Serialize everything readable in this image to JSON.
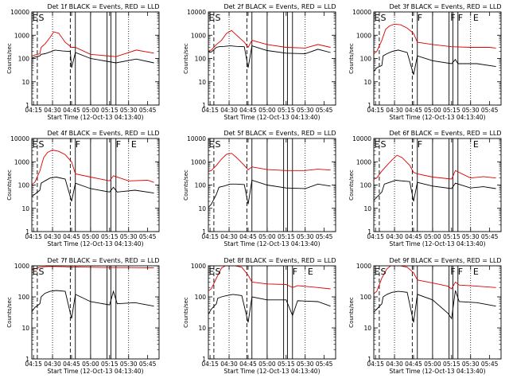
{
  "figure": {
    "common": {
      "ylabel": "Counts/sec",
      "xlabel": "Start Time (12-Oct-13 04:13:40)",
      "x_tick_labels": [
        "04:15",
        "04:30",
        "04:45",
        "05:00",
        "05:15",
        "05:30",
        "05:45"
      ],
      "y_tick_labels_a": [
        "1",
        "10",
        "100",
        "1000",
        "10000"
      ],
      "y_tick_labels_b": [
        "1",
        "10",
        "100",
        "1000"
      ],
      "colors": {
        "events": "#000000",
        "lld": "#dd0000",
        "axes": "#000000"
      }
    }
  },
  "chart_data": [
    {
      "type": "line",
      "title": "Det 1f BLACK = Events, RED = LLD",
      "xlabel": "Start Time (12-Oct-13 04:13:40)",
      "ylabel": "Counts/sec",
      "yscale": "log",
      "ylim": [
        1,
        10000
      ],
      "xlim": [
        "04:13:40",
        "05:54"
      ],
      "labels": [
        {
          "text": "E",
          "x": "04:14"
        },
        {
          "text": "S",
          "x": "04:19"
        }
      ],
      "series": [
        {
          "name": "Events",
          "color": "#000000",
          "x": [
            "04:13",
            "04:16",
            "04:20",
            "04:21",
            "04:24",
            "04:28",
            "04:32",
            "04:38",
            "04:44",
            "04:45",
            "04:48",
            "05:00",
            "05:20",
            "05:36",
            "05:50"
          ],
          "y": [
            100,
            115,
            130,
            150,
            160,
            190,
            230,
            210,
            200,
            40,
            180,
            100,
            65,
            95,
            65
          ]
        },
        {
          "name": "LLD",
          "color": "#dd0000",
          "x": [
            "04:13",
            "04:16",
            "04:20",
            "04:21",
            "04:24",
            "04:28",
            "04:31",
            "04:35",
            "04:40",
            "04:45",
            "04:48",
            "05:00",
            "05:20",
            "05:36",
            "05:50"
          ],
          "y": [
            120,
            140,
            160,
            300,
            420,
            800,
            1400,
            1200,
            500,
            300,
            300,
            150,
            120,
            230,
            170
          ]
        }
      ]
    },
    {
      "type": "line",
      "title": "Det 2f BLACK = Events, RED = LLD",
      "xlabel": "Start Time (12-Oct-13 04:13:40)",
      "ylabel": "Counts/sec",
      "yscale": "log",
      "ylim": [
        1,
        10000
      ],
      "xlim": [
        "04:13:40",
        "05:54"
      ],
      "labels": [
        {
          "text": "E",
          "x": "04:14"
        },
        {
          "text": "S",
          "x": "04:19"
        }
      ],
      "series": [
        {
          "name": "Events",
          "color": "#000000",
          "x": [
            "04:13",
            "04:16",
            "04:20",
            "04:22",
            "04:26",
            "04:31",
            "04:36",
            "04:42",
            "04:45",
            "04:48",
            "05:00",
            "05:15",
            "05:30",
            "05:40",
            "05:50"
          ],
          "y": [
            180,
            190,
            300,
            320,
            330,
            350,
            330,
            320,
            40,
            350,
            220,
            170,
            160,
            250,
            180
          ]
        },
        {
          "name": "LLD",
          "color": "#dd0000",
          "x": [
            "04:13",
            "04:16",
            "04:20",
            "04:24",
            "04:28",
            "04:32",
            "04:36",
            "04:42",
            "04:45",
            "04:48",
            "05:00",
            "05:15",
            "05:30",
            "05:40",
            "05:50"
          ],
          "y": [
            200,
            230,
            400,
            600,
            1200,
            1600,
            1000,
            500,
            300,
            600,
            400,
            300,
            280,
            400,
            300
          ]
        }
      ]
    },
    {
      "type": "line",
      "title": "Det 3f BLACK = Events, RED = LLD",
      "xlabel": "Start Time (12-Oct-13 04:13:40)",
      "ylabel": "Counts/sec",
      "yscale": "log",
      "ylim": [
        1,
        10000
      ],
      "xlim": [
        "04:13:40",
        "05:54"
      ],
      "labels": [
        {
          "text": "E",
          "x": "04:14"
        },
        {
          "text": "S",
          "x": "04:19"
        },
        {
          "text": "F",
          "x": "04:48"
        },
        {
          "text": "F",
          "x": "05:14"
        },
        {
          "text": "F",
          "x": "05:20"
        },
        {
          "text": "E",
          "x": "05:32"
        }
      ],
      "series": [
        {
          "name": "Events",
          "color": "#000000",
          "x": [
            "04:13",
            "04:16",
            "04:20",
            "04:21",
            "04:24",
            "04:28",
            "04:33",
            "04:40",
            "04:45",
            "04:48",
            "05:00",
            "05:15",
            "05:18",
            "05:20",
            "05:35",
            "05:50"
          ],
          "y": [
            25,
            40,
            50,
            130,
            160,
            200,
            230,
            180,
            20,
            130,
            80,
            60,
            90,
            60,
            60,
            45
          ]
        },
        {
          "name": "LLD",
          "color": "#dd0000",
          "x": [
            "04:13",
            "04:16",
            "04:20",
            "04:23",
            "04:26",
            "04:30",
            "04:35",
            "04:40",
            "04:45",
            "04:48",
            "05:00",
            "05:15",
            "05:30",
            "05:45",
            "05:50"
          ],
          "y": [
            150,
            200,
            600,
            1800,
            2500,
            3000,
            2800,
            2000,
            1200,
            500,
            400,
            320,
            300,
            300,
            280
          ]
        }
      ]
    },
    {
      "type": "line",
      "title": "Det 4f BLACK = Events, RED = LLD",
      "xlabel": "Start Time (12-Oct-13 04:13:40)",
      "ylabel": "Counts/sec",
      "yscale": "log",
      "ylim": [
        1,
        10000
      ],
      "xlim": [
        "04:13:40",
        "05:54"
      ],
      "labels": [
        {
          "text": "E",
          "x": "04:14"
        },
        {
          "text": "S",
          "x": "04:19"
        },
        {
          "text": "F",
          "x": "04:48"
        },
        {
          "text": "F",
          "x": "05:20"
        },
        {
          "text": "E",
          "x": "05:32"
        }
      ],
      "series": [
        {
          "name": "Events",
          "color": "#000000",
          "x": [
            "04:13",
            "04:16",
            "04:20",
            "04:21",
            "04:24",
            "04:28",
            "04:33",
            "04:40",
            "04:45",
            "04:48",
            "05:00",
            "05:15",
            "05:18",
            "05:21",
            "05:35",
            "05:50"
          ],
          "y": [
            30,
            40,
            60,
            120,
            150,
            200,
            220,
            180,
            20,
            120,
            70,
            50,
            80,
            50,
            60,
            45
          ]
        },
        {
          "name": "LLD",
          "color": "#dd0000",
          "x": [
            "04:13",
            "04:16",
            "04:20",
            "04:23",
            "04:26",
            "04:30",
            "04:35",
            "04:40",
            "04:45",
            "04:48",
            "05:00",
            "05:15",
            "05:18",
            "05:30",
            "05:45",
            "05:50"
          ],
          "y": [
            100,
            130,
            400,
            1500,
            2500,
            3200,
            2800,
            2000,
            1000,
            300,
            220,
            150,
            250,
            150,
            160,
            130
          ]
        }
      ]
    },
    {
      "type": "line",
      "title": "Det 5f BLACK = Events, RED = LLD",
      "xlabel": "Start Time (12-Oct-13 04:13:40)",
      "ylabel": "Counts/sec",
      "yscale": "log",
      "ylim": [
        1,
        10000
      ],
      "xlim": [
        "04:13:40",
        "05:54"
      ],
      "labels": [
        {
          "text": "E",
          "x": "04:14"
        },
        {
          "text": "S",
          "x": "04:19"
        }
      ],
      "series": [
        {
          "name": "Events",
          "color": "#000000",
          "x": [
            "04:13",
            "04:16",
            "04:20",
            "04:22",
            "04:26",
            "04:31",
            "04:36",
            "04:42",
            "04:45",
            "04:48",
            "05:00",
            "05:15",
            "05:30",
            "05:40",
            "05:50"
          ],
          "y": [
            10,
            15,
            40,
            80,
            90,
            110,
            110,
            105,
            15,
            160,
            100,
            75,
            70,
            110,
            90
          ]
        },
        {
          "name": "LLD",
          "color": "#dd0000",
          "x": [
            "04:13",
            "04:16",
            "04:20",
            "04:24",
            "04:28",
            "04:32",
            "04:36",
            "04:42",
            "04:45",
            "04:48",
            "05:00",
            "05:15",
            "05:30",
            "05:40",
            "05:50"
          ],
          "y": [
            380,
            420,
            700,
            1300,
            2100,
            2300,
            1500,
            700,
            450,
            600,
            460,
            420,
            420,
            480,
            440
          ]
        }
      ]
    },
    {
      "type": "line",
      "title": "Det 6f BLACK = Events, RED = LLD",
      "xlabel": "Start Time (12-Oct-13 04:13:40)",
      "ylabel": "Counts/sec",
      "yscale": "log",
      "ylim": [
        1,
        10000
      ],
      "xlim": [
        "04:13:40",
        "05:54"
      ],
      "labels": [
        {
          "text": "E",
          "x": "04:14"
        },
        {
          "text": "S",
          "x": "04:19"
        },
        {
          "text": "F",
          "x": "04:48"
        },
        {
          "text": "E",
          "x": "05:32"
        }
      ],
      "series": [
        {
          "name": "Events",
          "color": "#000000",
          "x": [
            "04:13",
            "04:16",
            "04:20",
            "04:22",
            "04:26",
            "04:31",
            "04:36",
            "04:42",
            "04:45",
            "04:48",
            "05:00",
            "05:15",
            "05:18",
            "05:30",
            "05:40",
            "05:50"
          ],
          "y": [
            20,
            30,
            50,
            110,
            130,
            160,
            150,
            140,
            20,
            130,
            90,
            70,
            120,
            75,
            85,
            70
          ]
        },
        {
          "name": "LLD",
          "color": "#dd0000",
          "x": [
            "04:13",
            "04:16",
            "04:20",
            "04:24",
            "04:28",
            "04:32",
            "04:36",
            "04:42",
            "04:45",
            "04:48",
            "05:00",
            "05:15",
            "05:18",
            "05:30",
            "05:40",
            "05:50"
          ],
          "y": [
            170,
            200,
            400,
            700,
            1200,
            1900,
            1500,
            700,
            350,
            300,
            220,
            180,
            420,
            200,
            230,
            200
          ]
        }
      ]
    },
    {
      "type": "line",
      "title": "Det 7f BLACK = Events, RED = LLD",
      "xlabel": "Start Time (12-Oct-13 04:13:40)",
      "ylabel": "Counts/sec",
      "yscale": "log",
      "ylim": [
        1,
        1000
      ],
      "xlim": [
        "04:13:40",
        "05:54"
      ],
      "labels": [
        {
          "text": "E",
          "x": "04:14"
        },
        {
          "text": "S",
          "x": "04:19"
        }
      ],
      "series": [
        {
          "name": "Events",
          "color": "#000000",
          "x": [
            "04:13",
            "04:16",
            "04:20",
            "04:21",
            "04:24",
            "04:28",
            "04:33",
            "04:40",
            "04:45",
            "04:48",
            "05:00",
            "05:15",
            "05:18",
            "05:21",
            "05:35",
            "05:50"
          ],
          "y": [
            30,
            45,
            60,
            100,
            130,
            150,
            160,
            150,
            20,
            120,
            70,
            55,
            150,
            60,
            65,
            50
          ]
        },
        {
          "name": "LLD",
          "color": "#dd0000",
          "x": [
            "04:13",
            "04:16",
            "04:20",
            "04:26",
            "04:32",
            "04:40",
            "04:45",
            "04:48",
            "05:00",
            "05:15",
            "05:30",
            "05:45",
            "05:50"
          ],
          "y": [
            750,
            800,
            900,
            950,
            950,
            930,
            900,
            920,
            900,
            880,
            880,
            870,
            860
          ]
        }
      ]
    },
    {
      "type": "line",
      "title": "Det 8f BLACK = Events, RED = LLD",
      "xlabel": "Start Time (12-Oct-13 04:13:40)",
      "ylabel": "Counts/sec",
      "yscale": "log",
      "ylim": [
        1,
        1000
      ],
      "xlim": [
        "04:13:40",
        "05:54"
      ],
      "labels": [
        {
          "text": "E",
          "x": "04:14"
        },
        {
          "text": "S",
          "x": "04:19"
        },
        {
          "text": "F",
          "x": "05:20"
        },
        {
          "text": "E",
          "x": "05:32"
        }
      ],
      "series": [
        {
          "name": "Events",
          "color": "#000000",
          "x": [
            "04:13",
            "04:16",
            "04:20",
            "04:21",
            "04:24",
            "04:28",
            "04:33",
            "04:40",
            "04:45",
            "04:48",
            "05:00",
            "05:15",
            "05:20",
            "05:24",
            "05:40",
            "05:50"
          ],
          "y": [
            25,
            40,
            60,
            90,
            100,
            110,
            120,
            110,
            15,
            100,
            80,
            80,
            25,
            75,
            70,
            50
          ]
        },
        {
          "name": "LLD",
          "color": "#dd0000",
          "x": [
            "04:13",
            "04:16",
            "04:20",
            "04:24",
            "04:27",
            "04:30",
            "04:35",
            "04:40",
            "04:45",
            "04:48",
            "05:00",
            "05:15",
            "05:20",
            "05:24",
            "05:40",
            "05:50"
          ],
          "y": [
            150,
            180,
            400,
            850,
            1000,
            1000,
            1000,
            900,
            500,
            300,
            260,
            250,
            200,
            230,
            200,
            180
          ]
        }
      ]
    },
    {
      "type": "line",
      "title": "Det 9f BLACK = Events, RED = LLD",
      "xlabel": "Start Time (12-Oct-13 04:13:40)",
      "ylabel": "Counts/sec",
      "yscale": "log",
      "ylim": [
        1,
        1000
      ],
      "xlim": [
        "04:13:40",
        "05:54"
      ],
      "labels": [
        {
          "text": "E",
          "x": "04:14"
        },
        {
          "text": "S",
          "x": "04:19"
        },
        {
          "text": "F",
          "x": "05:14"
        },
        {
          "text": "F",
          "x": "05:20"
        },
        {
          "text": "E",
          "x": "05:32"
        }
      ],
      "series": [
        {
          "name": "Events",
          "color": "#000000",
          "x": [
            "04:13",
            "04:16",
            "04:20",
            "04:21",
            "04:24",
            "04:28",
            "04:33",
            "04:40",
            "04:45",
            "04:48",
            "05:00",
            "05:12",
            "05:15",
            "05:18",
            "05:21",
            "05:35",
            "05:50"
          ],
          "y": [
            30,
            40,
            60,
            100,
            120,
            140,
            150,
            140,
            15,
            120,
            80,
            30,
            20,
            160,
            70,
            65,
            50
          ]
        },
        {
          "name": "LLD",
          "color": "#dd0000",
          "x": [
            "04:13",
            "04:16",
            "04:20",
            "04:24",
            "04:27",
            "04:30",
            "04:35",
            "04:40",
            "04:45",
            "04:48",
            "05:00",
            "05:12",
            "05:15",
            "05:18",
            "05:21",
            "05:35",
            "05:50"
          ],
          "y": [
            120,
            150,
            400,
            800,
            1000,
            1000,
            1000,
            900,
            600,
            350,
            280,
            220,
            180,
            300,
            240,
            220,
            200
          ]
        }
      ]
    }
  ]
}
